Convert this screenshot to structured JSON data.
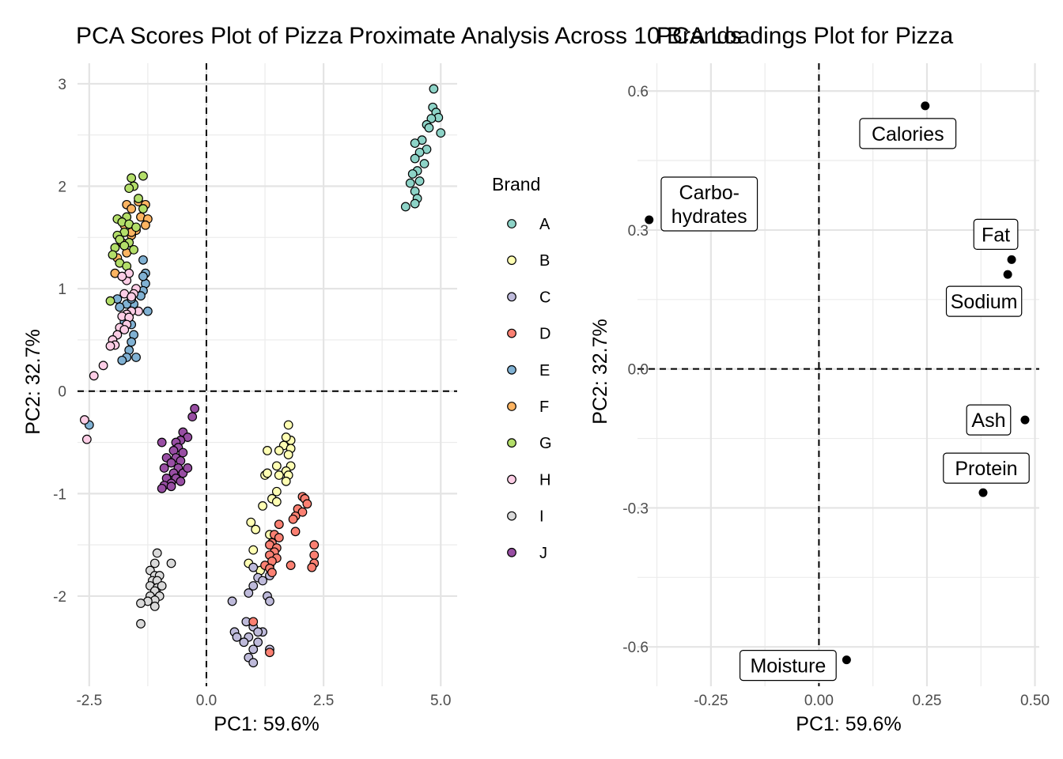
{
  "chart_data": [
    {
      "type": "scatter",
      "title": "PCA Scores Plot of Pizza Proximate Analysis Across 10 Brands",
      "xlabel": "PC1: 59.6%",
      "ylabel": "PC2: 32.7%",
      "xlim": [
        -2.75,
        5.35
      ],
      "ylim": [
        -2.88,
        3.2
      ],
      "x_ticks": [
        -2.5,
        0,
        2.5,
        5
      ],
      "x_tick_labels": [
        "-2.5",
        "0.0",
        "2.5",
        "5.0"
      ],
      "y_ticks": [
        -2,
        -1,
        0,
        1,
        2,
        3
      ],
      "y_tick_labels": [
        "-2",
        "-1",
        "0",
        "1",
        "2",
        "3"
      ],
      "reference_lines": {
        "x": 0,
        "y": 0,
        "style": "dashed"
      },
      "grid": true,
      "legend": {
        "title": "Brand",
        "position": "right"
      },
      "series": [
        {
          "name": "A",
          "color": "#8DD3C7",
          "points": [
            [
              4.85,
              2.95
            ],
            [
              4.83,
              2.77
            ],
            [
              4.9,
              2.72
            ],
            [
              4.95,
              2.67
            ],
            [
              4.8,
              2.66
            ],
            [
              4.7,
              2.6
            ],
            [
              4.75,
              2.57
            ],
            [
              5.0,
              2.52
            ],
            [
              4.6,
              2.45
            ],
            [
              4.45,
              2.42
            ],
            [
              4.7,
              2.36
            ],
            [
              4.55,
              2.33
            ],
            [
              4.45,
              2.27
            ],
            [
              4.65,
              2.22
            ],
            [
              4.5,
              2.15
            ],
            [
              4.4,
              2.12
            ],
            [
              4.55,
              2.05
            ],
            [
              4.35,
              2.03
            ],
            [
              4.45,
              1.95
            ],
            [
              4.5,
              1.88
            ],
            [
              4.25,
              1.8
            ],
            [
              4.45,
              1.83
            ]
          ]
        },
        {
          "name": "B",
          "color": "#FFFFB3",
          "points": [
            [
              1.75,
              -0.33
            ],
            [
              1.8,
              -0.48
            ],
            [
              1.7,
              -0.45
            ],
            [
              1.65,
              -0.53
            ],
            [
              1.8,
              -0.56
            ],
            [
              1.75,
              -0.62
            ],
            [
              1.3,
              -0.58
            ],
            [
              1.55,
              -0.58
            ],
            [
              1.5,
              -0.73
            ],
            [
              1.8,
              -0.73
            ],
            [
              1.7,
              -0.78
            ],
            [
              1.75,
              -0.82
            ],
            [
              1.55,
              -0.82
            ],
            [
              1.25,
              -0.82
            ],
            [
              1.3,
              -0.8
            ],
            [
              1.5,
              -0.98
            ],
            [
              1.7,
              -0.88
            ],
            [
              1.4,
              -1.05
            ],
            [
              1.5,
              -1.08
            ],
            [
              1.2,
              -1.12
            ],
            [
              0.95,
              -1.28
            ],
            [
              1.05,
              -1.35
            ],
            [
              1.35,
              -1.4
            ],
            [
              1.0,
              -1.55
            ],
            [
              0.9,
              -1.68
            ],
            [
              1.15,
              -1.75
            ]
          ]
        },
        {
          "name": "C",
          "color": "#BEBADA",
          "points": [
            [
              1.4,
              -1.6
            ],
            [
              1.35,
              -1.7
            ],
            [
              1.0,
              -1.72
            ],
            [
              1.1,
              -1.82
            ],
            [
              1.2,
              -1.85
            ],
            [
              1.0,
              -1.9
            ],
            [
              0.9,
              -1.97
            ],
            [
              1.3,
              -2.0
            ],
            [
              1.35,
              -2.05
            ],
            [
              0.55,
              -2.05
            ],
            [
              0.85,
              -2.25
            ],
            [
              1.0,
              -2.3
            ],
            [
              1.2,
              -2.35
            ],
            [
              0.6,
              -2.35
            ],
            [
              0.65,
              -2.4
            ],
            [
              0.9,
              -2.4
            ],
            [
              0.8,
              -2.45
            ],
            [
              1.1,
              -2.45
            ],
            [
              1.0,
              -2.52
            ],
            [
              1.35,
              -2.52
            ],
            [
              0.9,
              -2.6
            ],
            [
              1.0,
              -2.65
            ],
            [
              1.1,
              -2.35
            ],
            [
              1.35,
              -1.8
            ]
          ]
        },
        {
          "name": "D",
          "color": "#FB8072",
          "points": [
            [
              2.05,
              -1.03
            ],
            [
              2.1,
              -1.05
            ],
            [
              2.15,
              -1.1
            ],
            [
              1.95,
              -1.15
            ],
            [
              2.05,
              -1.18
            ],
            [
              1.9,
              -1.22
            ],
            [
              1.85,
              -1.25
            ],
            [
              1.55,
              -1.3
            ],
            [
              1.9,
              -1.37
            ],
            [
              1.45,
              -1.4
            ],
            [
              1.55,
              -1.43
            ],
            [
              1.4,
              -1.48
            ],
            [
              1.35,
              -1.5
            ],
            [
              1.5,
              -1.53
            ],
            [
              1.45,
              -1.57
            ],
            [
              1.35,
              -1.6
            ],
            [
              1.5,
              -1.63
            ],
            [
              1.4,
              -1.66
            ],
            [
              1.25,
              -1.7
            ],
            [
              1.35,
              -1.73
            ],
            [
              1.4,
              -1.77
            ],
            [
              2.3,
              -1.5
            ],
            [
              2.3,
              -1.6
            ],
            [
              2.3,
              -1.68
            ],
            [
              2.25,
              -1.72
            ],
            [
              1.8,
              -1.7
            ],
            [
              1.0,
              -2.25
            ],
            [
              1.35,
              -2.55
            ]
          ]
        },
        {
          "name": "E",
          "color": "#80B1D3",
          "points": [
            [
              -1.35,
              1.28
            ],
            [
              -1.3,
              1.15
            ],
            [
              -1.3,
              1.05
            ],
            [
              -1.35,
              0.98
            ],
            [
              -1.4,
              0.93
            ],
            [
              -1.25,
              0.78
            ],
            [
              -1.55,
              0.85
            ],
            [
              -1.7,
              0.85
            ],
            [
              -1.85,
              0.82
            ],
            [
              -1.7,
              0.75
            ],
            [
              -1.75,
              0.68
            ],
            [
              -1.6,
              0.65
            ],
            [
              -1.55,
              0.55
            ],
            [
              -1.6,
              0.48
            ],
            [
              -1.65,
              0.4
            ],
            [
              -1.7,
              0.33
            ],
            [
              -1.5,
              0.33
            ],
            [
              -1.8,
              0.3
            ],
            [
              -1.9,
              0.9
            ],
            [
              -2.5,
              -0.33
            ],
            [
              -1.35,
              1.12
            ],
            [
              -1.6,
              0.9
            ]
          ]
        },
        {
          "name": "F",
          "color": "#FDB462",
          "points": [
            [
              -1.45,
              1.85
            ],
            [
              -1.3,
              1.82
            ],
            [
              -1.7,
              1.82
            ],
            [
              -1.6,
              1.78
            ],
            [
              -1.4,
              1.7
            ],
            [
              -1.25,
              1.68
            ],
            [
              -1.3,
              1.62
            ],
            [
              -1.75,
              1.62
            ],
            [
              -1.5,
              1.57
            ],
            [
              -1.6,
              1.52
            ],
            [
              -1.8,
              1.45
            ],
            [
              -1.7,
              1.35
            ],
            [
              -1.9,
              1.3
            ],
            [
              -1.95,
              1.15
            ],
            [
              -1.6,
              1.55
            ]
          ]
        },
        {
          "name": "G",
          "color": "#B3DE69",
          "points": [
            [
              -1.35,
              2.1
            ],
            [
              -1.6,
              2.08
            ],
            [
              -1.55,
              2.0
            ],
            [
              -1.65,
              1.98
            ],
            [
              -1.45,
              1.88
            ],
            [
              -1.35,
              1.78
            ],
            [
              -1.9,
              1.68
            ],
            [
              -1.7,
              1.7
            ],
            [
              -1.8,
              1.65
            ],
            [
              -1.65,
              1.63
            ],
            [
              -1.5,
              1.6
            ],
            [
              -1.75,
              1.55
            ],
            [
              -1.9,
              1.52
            ],
            [
              -1.85,
              1.48
            ],
            [
              -1.65,
              1.45
            ],
            [
              -1.75,
              1.42
            ],
            [
              -1.95,
              1.4
            ],
            [
              -1.55,
              1.38
            ],
            [
              -2.0,
              1.33
            ],
            [
              -1.85,
              1.25
            ],
            [
              -1.7,
              1.22
            ],
            [
              -2.05,
              0.88
            ]
          ]
        },
        {
          "name": "H",
          "color": "#FCCDE5",
          "points": [
            [
              -1.5,
              1.0
            ],
            [
              -1.55,
              0.95
            ],
            [
              -1.75,
              0.95
            ],
            [
              -1.6,
              0.92
            ],
            [
              -1.7,
              1.08
            ],
            [
              -1.65,
              1.15
            ],
            [
              -1.8,
              1.12
            ],
            [
              -1.45,
              0.78
            ],
            [
              -1.6,
              0.78
            ],
            [
              -1.7,
              0.75
            ],
            [
              -1.8,
              0.73
            ],
            [
              -1.65,
              0.72
            ],
            [
              -1.7,
              0.65
            ],
            [
              -1.85,
              0.62
            ],
            [
              -1.75,
              0.6
            ],
            [
              -1.9,
              0.55
            ],
            [
              -2.0,
              0.5
            ],
            [
              -1.95,
              0.45
            ],
            [
              -2.05,
              0.44
            ],
            [
              -2.2,
              0.25
            ],
            [
              -2.4,
              0.15
            ],
            [
              -2.6,
              -0.28
            ],
            [
              -2.55,
              -0.47
            ]
          ]
        },
        {
          "name": "I",
          "color": "#D9D9D9",
          "points": [
            [
              -1.05,
              -1.58
            ],
            [
              -1.1,
              -1.68
            ],
            [
              -0.75,
              -1.68
            ],
            [
              -1.2,
              -1.75
            ],
            [
              -1.1,
              -1.8
            ],
            [
              -1.0,
              -1.8
            ],
            [
              -1.15,
              -1.85
            ],
            [
              -1.05,
              -1.85
            ],
            [
              -1.2,
              -1.9
            ],
            [
              -1.05,
              -1.92
            ],
            [
              -0.95,
              -1.9
            ],
            [
              -1.1,
              -1.95
            ],
            [
              -1.0,
              -2.0
            ],
            [
              -1.2,
              -2.0
            ],
            [
              -1.1,
              -2.04
            ],
            [
              -1.25,
              -2.05
            ],
            [
              -1.4,
              -2.07
            ],
            [
              -1.1,
              -2.1
            ],
            [
              -1.4,
              -2.27
            ]
          ]
        },
        {
          "name": "J",
          "color": "#984EA3",
          "points": [
            [
              -0.25,
              -0.17
            ],
            [
              -0.3,
              -0.25
            ],
            [
              -0.5,
              -0.4
            ],
            [
              -0.4,
              -0.45
            ],
            [
              -0.55,
              -0.48
            ],
            [
              -0.95,
              -0.5
            ],
            [
              -0.65,
              -0.5
            ],
            [
              -0.6,
              -0.55
            ],
            [
              -0.7,
              -0.58
            ],
            [
              -0.5,
              -0.6
            ],
            [
              -0.85,
              -0.65
            ],
            [
              -0.65,
              -0.65
            ],
            [
              -0.75,
              -0.7
            ],
            [
              -0.55,
              -0.68
            ],
            [
              -0.9,
              -0.75
            ],
            [
              -0.6,
              -0.75
            ],
            [
              -0.7,
              -0.8
            ],
            [
              -0.5,
              -0.8
            ],
            [
              -0.85,
              -0.85
            ],
            [
              -0.65,
              -0.85
            ],
            [
              -0.55,
              -0.88
            ],
            [
              -0.75,
              -0.9
            ],
            [
              -0.9,
              -0.92
            ],
            [
              -0.75,
              -0.93
            ],
            [
              -0.95,
              -0.95
            ],
            [
              -0.4,
              -0.75
            ]
          ]
        }
      ]
    },
    {
      "type": "scatter",
      "title": "PCA Loadings Plot for Pizza",
      "xlabel": "PC1: 59.6%",
      "ylabel": "PC2: 32.7%",
      "xlim": [
        -0.42,
        0.51
      ],
      "ylim": [
        -0.685,
        0.66
      ],
      "x_ticks": [
        -0.25,
        0,
        0.25,
        0.5
      ],
      "x_tick_labels": [
        "-0.25",
        "0.00",
        "0.25",
        "0.50"
      ],
      "y_ticks": [
        -0.6,
        -0.3,
        0,
        0.3,
        0.6
      ],
      "y_tick_labels": [
        "-0.6",
        "-0.3",
        "0.0",
        "0.3",
        "0.6"
      ],
      "reference_lines": {
        "x": 0,
        "y": 0,
        "style": "dashed"
      },
      "grid": true,
      "point_color": "#000000",
      "points": [
        {
          "label": "Calories",
          "x": 0.246,
          "y": 0.568
        },
        {
          "label": "Carbo-\nhydrates",
          "x": -0.393,
          "y": 0.322
        },
        {
          "label": "Fat",
          "x": 0.446,
          "y": 0.236
        },
        {
          "label": "Sodium",
          "x": 0.437,
          "y": 0.204
        },
        {
          "label": "Ash",
          "x": 0.477,
          "y": -0.11
        },
        {
          "label": "Protein",
          "x": 0.38,
          "y": -0.267
        },
        {
          "label": "Moisture",
          "x": 0.064,
          "y": -0.628
        }
      ]
    }
  ]
}
